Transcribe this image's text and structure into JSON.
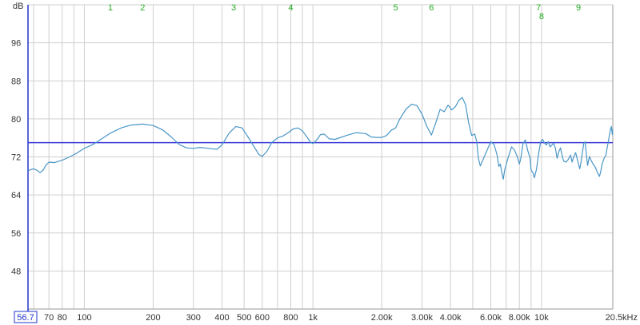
{
  "chart_data": {
    "type": "line",
    "ylabel": "dB",
    "xscale": "log",
    "x_unit_label": "Hz",
    "xlim": [
      56.7,
      20500
    ],
    "ylim": [
      40,
      104
    ],
    "grid": true,
    "y_ticks": [
      48,
      56,
      64,
      72,
      80,
      88,
      96
    ],
    "x_ticks": [
      {
        "value": 70,
        "label": "70"
      },
      {
        "value": 80,
        "label": "80"
      },
      {
        "value": 100,
        "label": "100"
      },
      {
        "value": 200,
        "label": "200"
      },
      {
        "value": 300,
        "label": "300"
      },
      {
        "value": 400,
        "label": "400"
      },
      {
        "value": 500,
        "label": "500"
      },
      {
        "value": 600,
        "label": "600"
      },
      {
        "value": 800,
        "label": "800"
      },
      {
        "value": 1000,
        "label": "1k"
      },
      {
        "value": 2000,
        "label": "2.00k"
      },
      {
        "value": 3000,
        "label": "3.00k"
      },
      {
        "value": 4000,
        "label": "4.00k"
      },
      {
        "value": 6000,
        "label": "6.00k"
      },
      {
        "value": 8000,
        "label": "8.00k"
      },
      {
        "value": 10000,
        "label": "10k"
      },
      {
        "value": 20500,
        "label": "20.5kHz"
      }
    ],
    "x_start_label": "56.7",
    "minor_grid_x": [
      60,
      90,
      700,
      900,
      5000,
      7000,
      9000
    ],
    "target_level": 75,
    "markers": [
      {
        "label": "1",
        "x": 130
      },
      {
        "label": "2",
        "x": 180
      },
      {
        "label": "3",
        "x": 450
      },
      {
        "label": "4",
        "x": 800
      },
      {
        "label": "5",
        "x": 2300
      },
      {
        "label": "6",
        "x": 3300
      },
      {
        "label": "7",
        "x": 9700
      },
      {
        "label": "8",
        "x": 10000
      },
      {
        "label": "9",
        "x": 14500
      }
    ],
    "series": [
      {
        "points": [
          [
            56.7,
            69
          ],
          [
            58,
            69.3
          ],
          [
            60,
            69.5
          ],
          [
            62,
            69.2
          ],
          [
            64,
            68.7
          ],
          [
            66,
            69.2
          ],
          [
            68,
            70.3
          ],
          [
            70,
            70.9
          ],
          [
            74,
            70.8
          ],
          [
            80,
            71.3
          ],
          [
            86,
            72
          ],
          [
            92,
            72.7
          ],
          [
            100,
            73.8
          ],
          [
            110,
            74.7
          ],
          [
            120,
            75.9
          ],
          [
            130,
            77
          ],
          [
            145,
            78.1
          ],
          [
            160,
            78.7
          ],
          [
            180,
            78.9
          ],
          [
            200,
            78.6
          ],
          [
            220,
            77.7
          ],
          [
            240,
            76.2
          ],
          [
            260,
            74.6
          ],
          [
            280,
            73.9
          ],
          [
            300,
            73.8
          ],
          [
            320,
            74
          ],
          [
            350,
            73.8
          ],
          [
            380,
            73.6
          ],
          [
            400,
            74.5
          ],
          [
            430,
            77
          ],
          [
            460,
            78.4
          ],
          [
            490,
            78.1
          ],
          [
            520,
            76.2
          ],
          [
            550,
            74.3
          ],
          [
            580,
            72.5
          ],
          [
            600,
            72.1
          ],
          [
            630,
            73.2
          ],
          [
            660,
            75
          ],
          [
            700,
            76
          ],
          [
            740,
            76.4
          ],
          [
            780,
            77.1
          ],
          [
            820,
            77.9
          ],
          [
            860,
            78.1
          ],
          [
            900,
            77.5
          ],
          [
            940,
            76.2
          ],
          [
            980,
            75
          ],
          [
            1000,
            74.8
          ],
          [
            1040,
            75.6
          ],
          [
            1080,
            76.7
          ],
          [
            1120,
            76.8
          ],
          [
            1180,
            75.8
          ],
          [
            1250,
            75.7
          ],
          [
            1400,
            76.5
          ],
          [
            1550,
            77.1
          ],
          [
            1700,
            76.9
          ],
          [
            1800,
            76.2
          ],
          [
            1900,
            76.1
          ],
          [
            2000,
            76.1
          ],
          [
            2100,
            76.5
          ],
          [
            2200,
            77.6
          ],
          [
            2300,
            78.1
          ],
          [
            2400,
            80
          ],
          [
            2550,
            82
          ],
          [
            2700,
            83.1
          ],
          [
            2850,
            82.8
          ],
          [
            3000,
            81
          ],
          [
            3150,
            78.4
          ],
          [
            3300,
            76.6
          ],
          [
            3450,
            79.2
          ],
          [
            3600,
            82
          ],
          [
            3750,
            81.5
          ],
          [
            3900,
            82.9
          ],
          [
            4050,
            81.9
          ],
          [
            4200,
            82.6
          ],
          [
            4350,
            83.9
          ],
          [
            4500,
            84.5
          ],
          [
            4650,
            83
          ],
          [
            4800,
            79.2
          ],
          [
            4950,
            76.5
          ],
          [
            5100,
            76.8
          ],
          [
            5200,
            75.3
          ],
          [
            5300,
            71.6
          ],
          [
            5400,
            70.1
          ],
          [
            5600,
            71.9
          ],
          [
            5800,
            73.6
          ],
          [
            6000,
            75.2
          ],
          [
            6200,
            74.6
          ],
          [
            6400,
            72.3
          ],
          [
            6500,
            70
          ],
          [
            6600,
            70.5
          ],
          [
            6700,
            68.8
          ],
          [
            6800,
            67.3
          ],
          [
            6900,
            69.3
          ],
          [
            7100,
            71.4
          ],
          [
            7300,
            73.3
          ],
          [
            7400,
            74.1
          ],
          [
            7600,
            73.5
          ],
          [
            7800,
            72.3
          ],
          [
            8000,
            70.5
          ],
          [
            8100,
            71.5
          ],
          [
            8300,
            74.8
          ],
          [
            8500,
            75.6
          ],
          [
            8700,
            73.4
          ],
          [
            8900,
            71.8
          ],
          [
            9000,
            69.3
          ],
          [
            9200,
            68.5
          ],
          [
            9300,
            67.6
          ],
          [
            9500,
            69.4
          ],
          [
            9700,
            72.5
          ],
          [
            9900,
            75.1
          ],
          [
            10100,
            75.7
          ],
          [
            10300,
            74.9
          ],
          [
            10500,
            74.5
          ],
          [
            10700,
            75.2
          ],
          [
            10900,
            74.1
          ],
          [
            11100,
            74.5
          ],
          [
            11300,
            74.9
          ],
          [
            11500,
            73.8
          ],
          [
            11700,
            71.7
          ],
          [
            11900,
            73.1
          ],
          [
            12100,
            73.9
          ],
          [
            12300,
            72.3
          ],
          [
            12500,
            71.1
          ],
          [
            12800,
            70.9
          ],
          [
            13100,
            71.5
          ],
          [
            13400,
            72.4
          ],
          [
            13600,
            70.9
          ],
          [
            13800,
            71.9
          ],
          [
            14100,
            72.9
          ],
          [
            14400,
            71.1
          ],
          [
            14700,
            69.5
          ],
          [
            14900,
            71
          ],
          [
            15100,
            73.1
          ],
          [
            15300,
            74.8
          ],
          [
            15500,
            75.2
          ],
          [
            15700,
            72.6
          ],
          [
            15900,
            70.2
          ],
          [
            16200,
            72.1
          ],
          [
            16500,
            71.2
          ],
          [
            16800,
            70.5
          ],
          [
            17200,
            69.8
          ],
          [
            17600,
            68.6
          ],
          [
            17900,
            67.9
          ],
          [
            18100,
            68.6
          ],
          [
            18400,
            70.4
          ],
          [
            18700,
            71.5
          ],
          [
            19100,
            72.3
          ],
          [
            19400,
            74.1
          ],
          [
            19700,
            75.9
          ],
          [
            20000,
            77.7
          ],
          [
            20200,
            78.4
          ],
          [
            20300,
            77.6
          ],
          [
            20400,
            76.7
          ],
          [
            20500,
            77.8
          ]
        ]
      }
    ]
  },
  "colors": {
    "background": "#ffffff",
    "grid": "#cfcfcf",
    "axis": "#2233cc",
    "target_line": "#3a3ad8",
    "trace": "#4a96c6",
    "marker_text": "#22aa22",
    "tick_text": "#333333"
  }
}
